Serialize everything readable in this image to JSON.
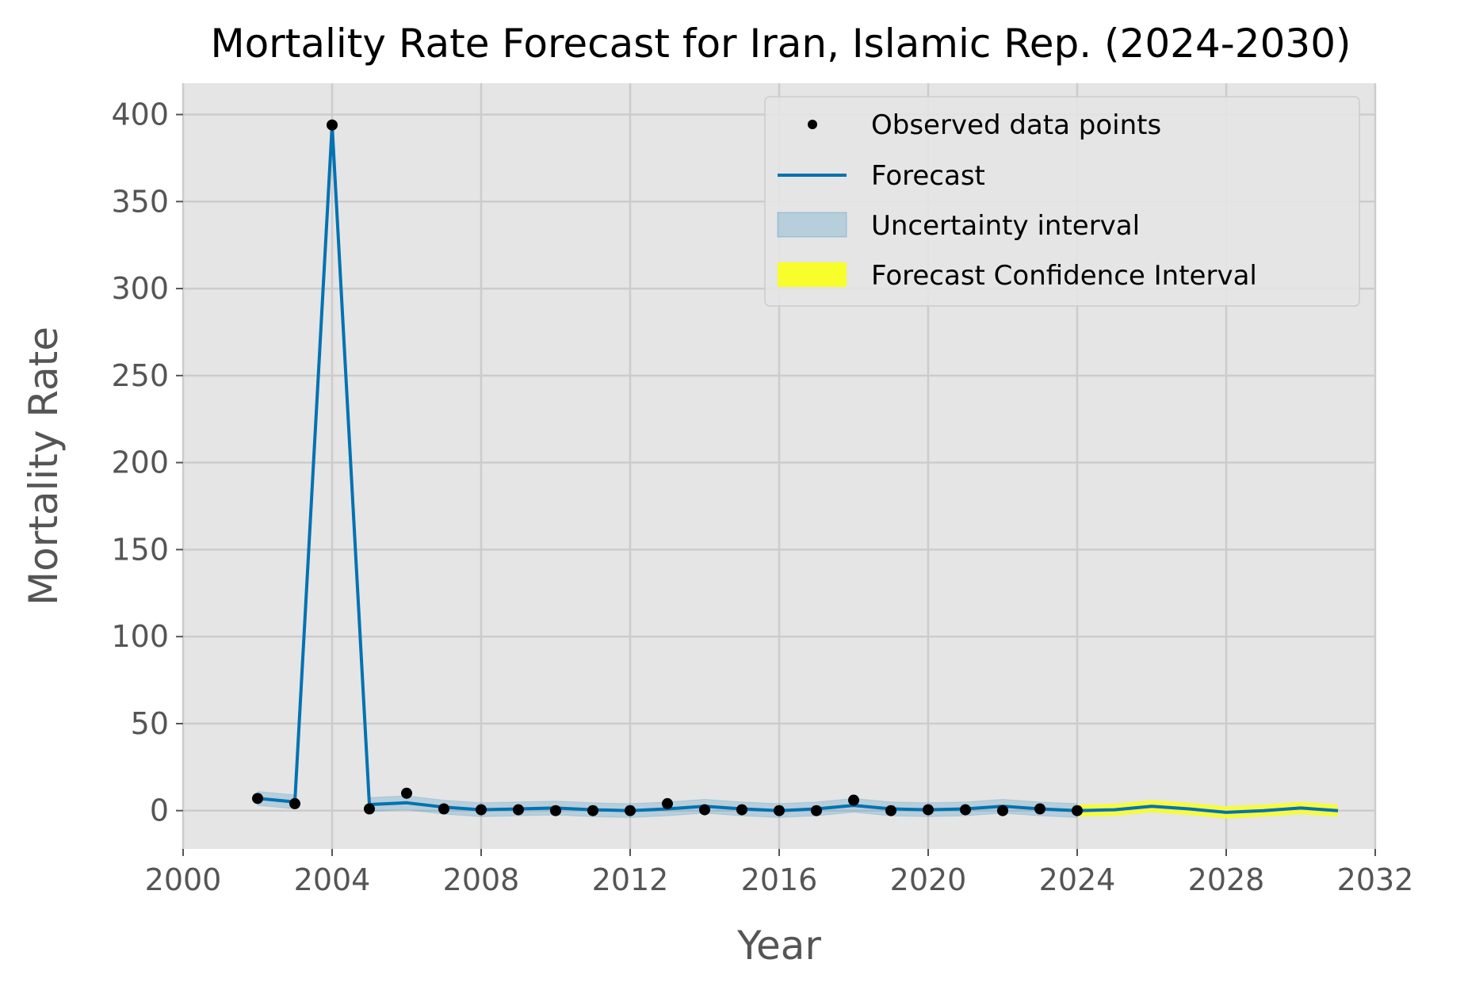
{
  "chart_data": {
    "type": "line",
    "title": "Mortality Rate Forecast for Iran, Islamic Rep. (2024-2030)",
    "xlabel": "Year",
    "ylabel": "Mortality Rate",
    "xlim": [
      2000,
      2032
    ],
    "ylim": [
      -22,
      418
    ],
    "x_ticks": [
      2000,
      2004,
      2008,
      2012,
      2016,
      2020,
      2024,
      2028,
      2032
    ],
    "y_ticks": [
      0,
      50,
      100,
      150,
      200,
      250,
      300,
      350,
      400
    ],
    "grid": true,
    "legend_position": "top-right",
    "legend": [
      "Observed data points",
      "Forecast",
      "Uncertainty interval",
      "Forecast Confidence Interval"
    ],
    "colors": {
      "background": "#e5e5e5",
      "grid": "#cccccc",
      "observed": "#000000",
      "forecast": "#0072b2",
      "uncertainty": "#0072b2",
      "forecast_ci": "#f8fd2c"
    },
    "observed": {
      "name": "Observed data points",
      "x": [
        2002,
        2003,
        2004,
        2005,
        2006,
        2007,
        2008,
        2009,
        2010,
        2011,
        2012,
        2013,
        2014,
        2015,
        2016,
        2017,
        2018,
        2019,
        2020,
        2021,
        2022,
        2023,
        2024
      ],
      "y": [
        7,
        4,
        394,
        1,
        10,
        1,
        0.5,
        0.5,
        0,
        0,
        0,
        4,
        0.5,
        0.5,
        0,
        0,
        6,
        0,
        0.5,
        0.5,
        0,
        1,
        0
      ]
    },
    "forecast": {
      "name": "Forecast",
      "x": [
        2002,
        2003,
        2004,
        2005,
        2006,
        2007,
        2008,
        2009,
        2010,
        2011,
        2012,
        2013,
        2014,
        2015,
        2016,
        2017,
        2018,
        2019,
        2020,
        2021,
        2022,
        2023,
        2024,
        2025,
        2026,
        2027,
        2028,
        2029,
        2030,
        2031
      ],
      "y": [
        7,
        5,
        394,
        3.5,
        4.5,
        2,
        0.5,
        1,
        1.5,
        0.5,
        0,
        1,
        2.5,
        1,
        0,
        1,
        3,
        1,
        0.5,
        1,
        2.5,
        1,
        0,
        0.5,
        2.5,
        1,
        -1,
        0,
        1.5,
        0
      ]
    },
    "uncertainty": {
      "name": "Uncertainty interval",
      "x": [
        2002,
        2003,
        2004,
        2005,
        2006,
        2007,
        2008,
        2009,
        2010,
        2011,
        2012,
        2013,
        2014,
        2015,
        2016,
        2017,
        2018,
        2019,
        2020,
        2021,
        2022,
        2023,
        2024
      ],
      "lower": [
        3,
        1,
        390,
        -0.5,
        0.5,
        -2,
        -3.5,
        -3,
        -2.5,
        -3.5,
        -4,
        -3,
        -1.5,
        -3,
        -4,
        -3,
        -1,
        -3,
        -3.5,
        -3,
        -1.5,
        -3,
        -4
      ],
      "upper": [
        11,
        9,
        398,
        7.5,
        8.5,
        6,
        4.5,
        5,
        5.5,
        4.5,
        4,
        5,
        6.5,
        5,
        4,
        5,
        7,
        5,
        4.5,
        5,
        6.5,
        5,
        4
      ]
    },
    "forecast_ci": {
      "name": "Forecast Confidence Interval",
      "x": [
        2024,
        2025,
        2026,
        2027,
        2028,
        2029,
        2030,
        2031
      ],
      "lower": [
        -3.5,
        -3,
        -1,
        -2.5,
        -4.5,
        -3.5,
        -2,
        -3.5
      ],
      "upper": [
        3.5,
        4,
        6,
        4.5,
        2.5,
        3.5,
        5,
        3.5
      ]
    }
  }
}
